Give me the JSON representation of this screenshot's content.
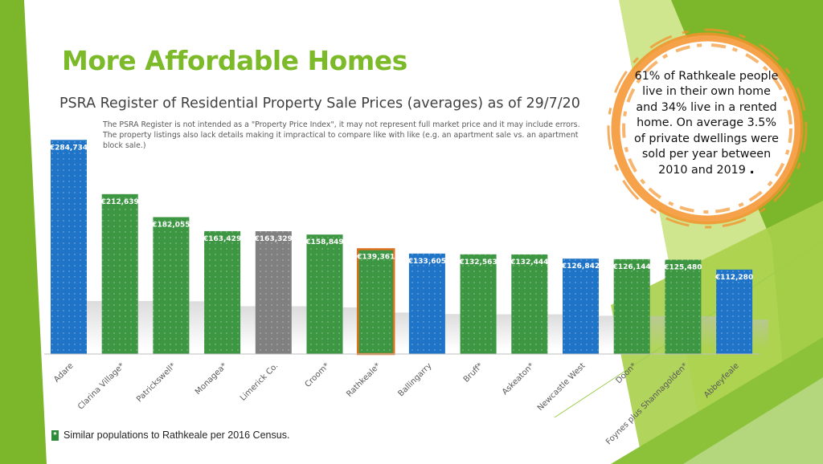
{
  "page": {
    "title": "More Affordable Homes",
    "subtitle": "PSRA Register of Residential Property Sale Prices (averages) as of 29/7/20",
    "disclaimer": "The PSRA Register is not intended as a \"Property Price Index\", it may not represent full market price and it may include errors. The property listings also lack details making it impractical to compare like with like (e.g. an apartment sale vs. an apartment block sale.)",
    "callout": {
      "lines": [
        "61% of Rathkeale people",
        "live in their own home",
        "and 34% live in a rented",
        "home. On average 3.5%",
        "of private dwellings were",
        "sold per year between",
        "2010 and 2019"
      ],
      "end_mark": "."
    },
    "footnote": {
      "marker": "*",
      "text": "Similar populations to Rathkeale per 2016 Census."
    }
  },
  "colors": {
    "title_green": "#7cba2a",
    "bar_green": "#3d9642",
    "bar_blue": "#1f74c8",
    "bar_grey": "#808080",
    "highlight_border": "#e0701f",
    "ring_orange": "#f3922a",
    "bg_green_light": "#b5d655",
    "bg_green_dark": "#7cb62a"
  },
  "chart_data": {
    "type": "bar",
    "title": "",
    "xlabel": "",
    "ylabel": "",
    "ylim": [
      0,
      300000
    ],
    "grid": false,
    "categories": [
      "Adare",
      "Clarina Village*",
      "Patrickswell*",
      "Monagea*",
      "Limerick Co.",
      "Croom*",
      "Rathkeale*",
      "Ballingarry",
      "Bruff*",
      "Askeaton*",
      "Newcastle West",
      "Doon*",
      "Foynes plus Shannagolden*",
      "Abbeyfeale"
    ],
    "values": [
      284734,
      212639,
      182055,
      163429,
      163329,
      158849,
      139361,
      133605,
      132563,
      132444,
      126842,
      126144,
      125480,
      112280
    ],
    "data_labels": [
      "€284,734",
      "€212,639",
      "€182,055",
      "€163,429",
      "€163,329",
      "€158,849",
      "€139,361",
      "€133,605",
      "€132,563",
      "€132,444",
      "€126,842",
      "€126,144",
      "€125,480",
      "€112,280"
    ],
    "bar_colors": [
      "blue",
      "green",
      "green",
      "green",
      "grey",
      "green",
      "green",
      "blue",
      "green",
      "green",
      "blue",
      "green",
      "green",
      "blue"
    ],
    "highlighted": "Rathkeale*"
  }
}
